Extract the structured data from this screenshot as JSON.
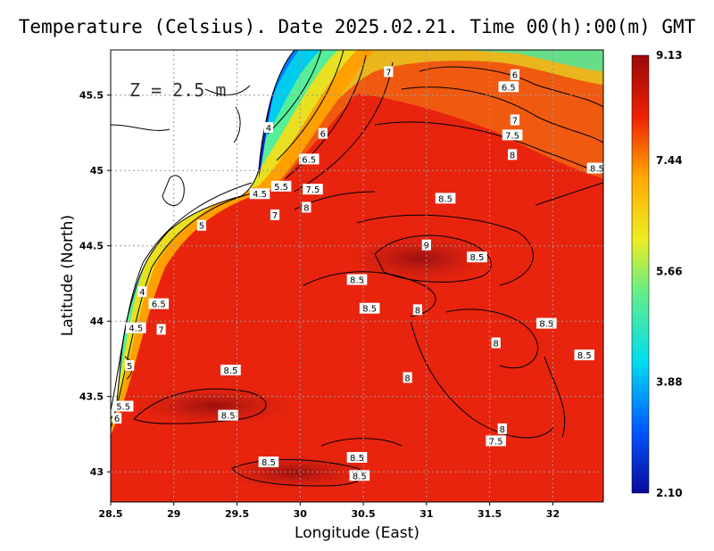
{
  "title": "Temperature (Celsius). Date 2025.02.21. Time 00(h):00(m) GMT",
  "depth_label": "Z = 2.5 m",
  "chart_data": {
    "type": "heatmap",
    "xlabel": "Longitude (East)",
    "ylabel": "Latitude (North)",
    "xlim": [
      28.5,
      32.4
    ],
    "ylim": [
      42.8,
      45.8
    ],
    "x_ticks": [
      "28.5",
      "29",
      "29.5",
      "30",
      "30.5",
      "31",
      "31.5",
      "32"
    ],
    "y_ticks": [
      "43",
      "43.5",
      "44",
      "44.5",
      "45",
      "45.5"
    ],
    "grid": true,
    "colorbar": {
      "min": 2.1,
      "max": 9.13,
      "labels": [
        "9.13",
        "7.44",
        "5.66",
        "3.88",
        "2.10"
      ],
      "colors": [
        "#0a0a9a",
        "#0055ff",
        "#00ddee",
        "#66ee88",
        "#eeee22",
        "#ffaa00",
        "#ee2000",
        "#9a0a0a"
      ]
    },
    "contour_labels": [
      {
        "text": "7",
        "lon": 30.7,
        "lat": 45.65
      },
      {
        "text": "6",
        "lon": 31.7,
        "lat": 45.63
      },
      {
        "text": "6.5",
        "lon": 31.65,
        "lat": 45.55
      },
      {
        "text": "7",
        "lon": 31.7,
        "lat": 45.33
      },
      {
        "text": "7.5",
        "lon": 31.68,
        "lat": 45.23
      },
      {
        "text": "8",
        "lon": 31.68,
        "lat": 45.1
      },
      {
        "text": "8.5",
        "lon": 32.35,
        "lat": 45.01
      },
      {
        "text": "4",
        "lon": 29.75,
        "lat": 45.28
      },
      {
        "text": "6",
        "lon": 30.18,
        "lat": 45.24
      },
      {
        "text": "6.5",
        "lon": 30.07,
        "lat": 45.07
      },
      {
        "text": "5.5",
        "lon": 29.85,
        "lat": 44.89
      },
      {
        "text": "4.5",
        "lon": 29.68,
        "lat": 44.84
      },
      {
        "text": "7.5",
        "lon": 30.1,
        "lat": 44.87
      },
      {
        "text": "8",
        "lon": 30.05,
        "lat": 44.75
      },
      {
        "text": "7",
        "lon": 29.8,
        "lat": 44.7
      },
      {
        "text": "5",
        "lon": 29.22,
        "lat": 44.63
      },
      {
        "text": "8.5",
        "lon": 31.15,
        "lat": 44.81
      },
      {
        "text": "9",
        "lon": 31.0,
        "lat": 44.5
      },
      {
        "text": "8.5",
        "lon": 31.4,
        "lat": 44.42
      },
      {
        "text": "8.5",
        "lon": 30.45,
        "lat": 44.27
      },
      {
        "text": "4",
        "lon": 28.75,
        "lat": 44.19
      },
      {
        "text": "6.5",
        "lon": 28.88,
        "lat": 44.11
      },
      {
        "text": "8.5",
        "lon": 30.55,
        "lat": 44.08
      },
      {
        "text": "8",
        "lon": 30.93,
        "lat": 44.07
      },
      {
        "text": "8.5",
        "lon": 31.95,
        "lat": 43.98
      },
      {
        "text": "4.5",
        "lon": 28.7,
        "lat": 43.95
      },
      {
        "text": "7",
        "lon": 28.9,
        "lat": 43.94
      },
      {
        "text": "8",
        "lon": 31.55,
        "lat": 43.85
      },
      {
        "text": "8.5",
        "lon": 32.25,
        "lat": 43.77
      },
      {
        "text": "5",
        "lon": 28.65,
        "lat": 43.7
      },
      {
        "text": "8.5",
        "lon": 29.45,
        "lat": 43.67
      },
      {
        "text": "8",
        "lon": 30.85,
        "lat": 43.62
      },
      {
        "text": "5.5",
        "lon": 28.6,
        "lat": 43.43
      },
      {
        "text": "8.5",
        "lon": 29.43,
        "lat": 43.37
      },
      {
        "text": "6",
        "lon": 28.55,
        "lat": 43.35
      },
      {
        "text": "8",
        "lon": 31.6,
        "lat": 43.28
      },
      {
        "text": "7.5",
        "lon": 31.55,
        "lat": 43.2
      },
      {
        "text": "8.5",
        "lon": 29.75,
        "lat": 43.06
      },
      {
        "text": "8.5",
        "lon": 30.45,
        "lat": 43.09
      },
      {
        "text": "8.5",
        "lon": 30.47,
        "lat": 42.97
      }
    ]
  }
}
